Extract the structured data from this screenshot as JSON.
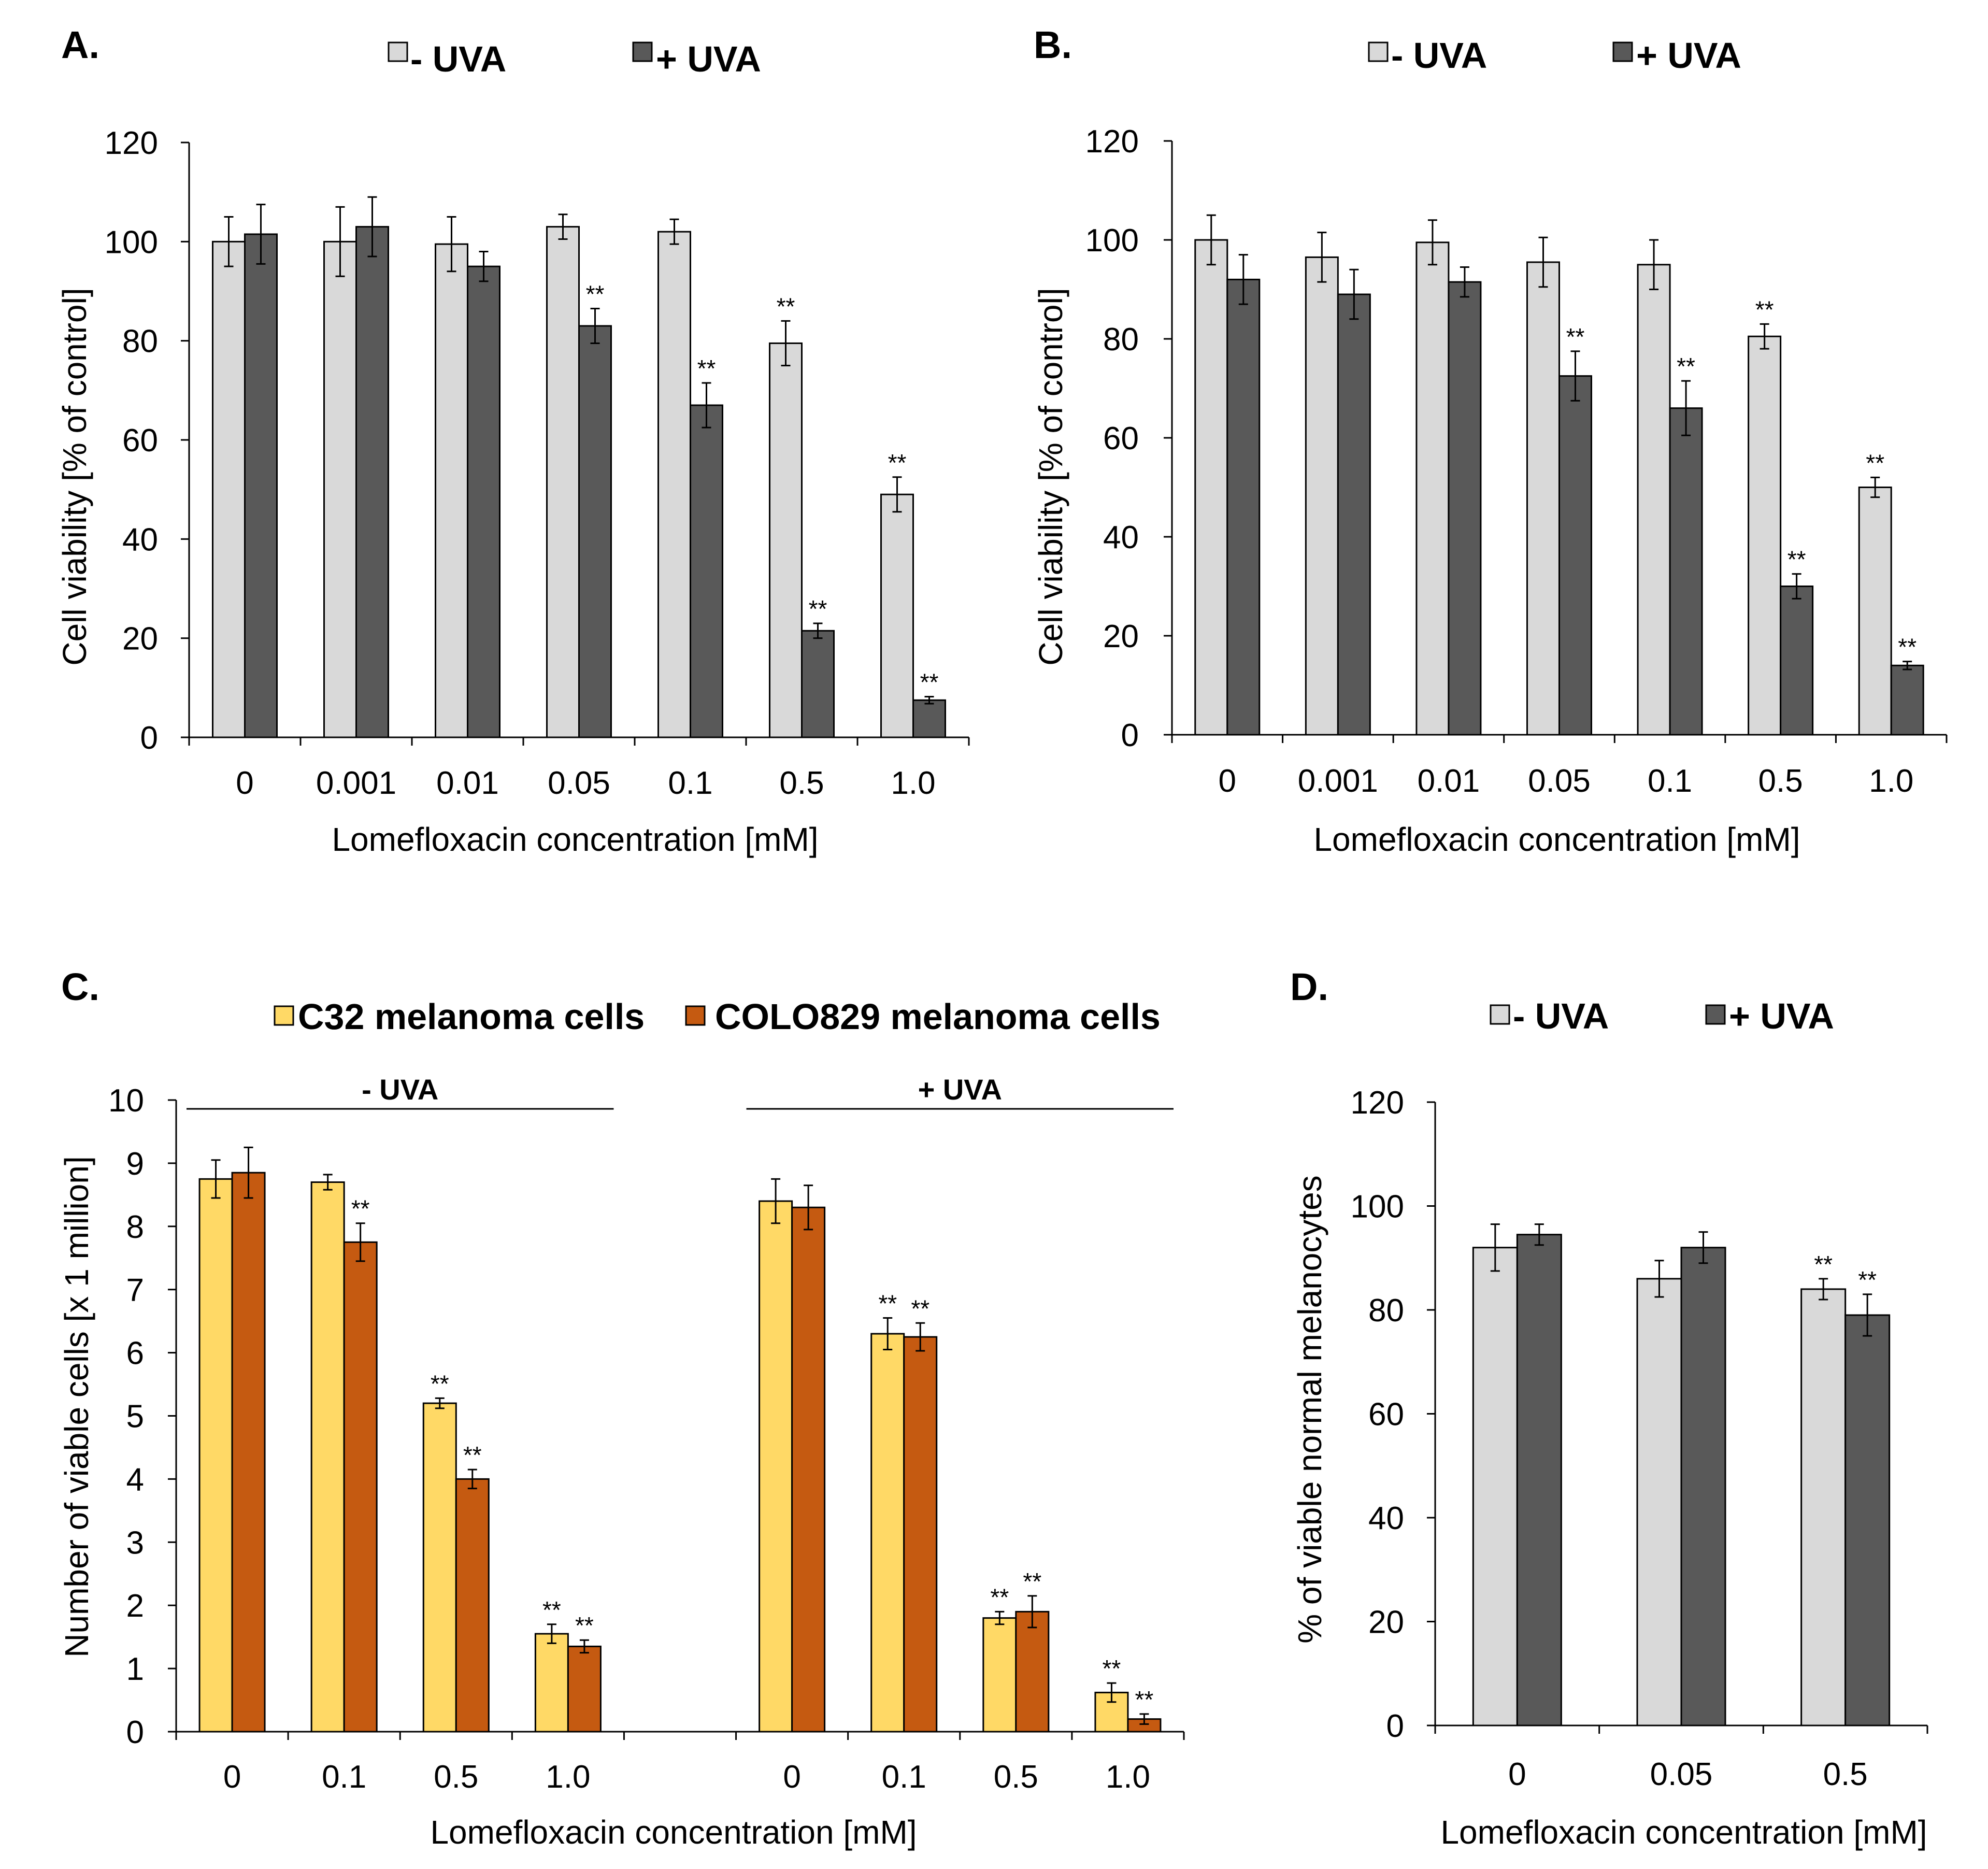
{
  "chart_data": [
    {
      "id": "A",
      "panel_label": "A.",
      "type": "bar",
      "title": "",
      "xlabel": "Lomefloxacin concentration [mM]",
      "ylabel": "Cell viability  [% of control]",
      "ylim": [
        0,
        120
      ],
      "yticks": [
        "0",
        "20",
        "40",
        "60",
        "80",
        "100",
        "120"
      ],
      "categories": [
        "0",
        "0.001",
        "0.01",
        "0.05",
        "0.1",
        "0.5",
        "1.0"
      ],
      "legend": [
        "- UVA",
        "+ UVA"
      ],
      "colors": [
        "#d9d9d9",
        "#595959"
      ],
      "series": [
        {
          "name": "- UVA",
          "values": [
            100,
            100,
            99.5,
            103,
            102,
            79.5,
            49
          ],
          "errors": [
            5,
            7,
            5.5,
            2.5,
            2.5,
            4.5,
            3.5
          ],
          "sig": [
            "",
            "",
            "",
            "",
            "",
            "**",
            "**"
          ]
        },
        {
          "name": "+ UVA",
          "values": [
            101.5,
            103,
            95,
            83,
            67,
            21.5,
            7.5
          ],
          "errors": [
            6,
            6,
            3,
            3.5,
            4.5,
            1.5,
            0.7
          ],
          "sig": [
            "",
            "",
            "",
            "**",
            "**",
            "**",
            "**"
          ]
        }
      ]
    },
    {
      "id": "B",
      "panel_label": "B.",
      "type": "bar",
      "title": "",
      "xlabel": "Lomefloxacin concentration [mM]",
      "ylabel": "Cell viability  [% of control]",
      "ylim": [
        0,
        120
      ],
      "yticks": [
        "0",
        "20",
        "40",
        "60",
        "80",
        "100",
        "120"
      ],
      "categories": [
        "0",
        "0.001",
        "0.01",
        "0.05",
        "0.1",
        "0.5",
        "1.0"
      ],
      "legend": [
        "- UVA",
        "+ UVA"
      ],
      "colors": [
        "#d9d9d9",
        "#595959"
      ],
      "series": [
        {
          "name": "- UVA",
          "values": [
            100,
            96.5,
            99.5,
            95.5,
            95,
            80.5,
            50
          ],
          "errors": [
            5,
            5,
            4.5,
            5,
            5,
            2.5,
            2
          ],
          "sig": [
            "",
            "",
            "",
            "",
            "",
            "**",
            "**"
          ]
        },
        {
          "name": "+ UVA",
          "values": [
            92,
            89,
            91.5,
            72.5,
            66,
            30,
            14
          ],
          "errors": [
            5,
            5,
            3,
            5,
            5.5,
            2.5,
            0.8
          ],
          "sig": [
            "",
            "",
            "",
            "**",
            "**",
            "**",
            "**"
          ]
        }
      ]
    },
    {
      "id": "C",
      "panel_label": "C.",
      "type": "bar",
      "title": "",
      "xlabel": "Lomefloxacin concentration [mM]",
      "ylabel": "Number of viable cells [x 1 million]",
      "ylim": [
        0,
        10
      ],
      "yticks": [
        "0",
        "1",
        "2",
        "3",
        "4",
        "5",
        "6",
        "7",
        "8",
        "9",
        "10"
      ],
      "categories": [
        "0",
        "0.1",
        "0.5",
        "1.0",
        "",
        "0",
        "0.1",
        "0.5",
        "1.0"
      ],
      "group_labels": [
        "- UVA",
        "+ UVA"
      ],
      "legend": [
        "C32 melanoma cells",
        "COLO829 melanoma cells"
      ],
      "colors": [
        "#ffd966",
        "#c55a11"
      ],
      "series": [
        {
          "name": "C32 melanoma cells",
          "values": [
            8.75,
            8.7,
            5.2,
            1.55,
            null,
            8.4,
            6.3,
            1.8,
            0.62
          ],
          "errors": [
            0.3,
            0.12,
            0.08,
            0.15,
            null,
            0.35,
            0.25,
            0.1,
            0.15
          ],
          "sig": [
            "",
            "",
            "**",
            "**",
            "",
            "",
            "**",
            "**",
            "**"
          ]
        },
        {
          "name": "COLO829 melanoma cells",
          "values": [
            8.85,
            7.75,
            4,
            1.35,
            null,
            8.3,
            6.25,
            1.9,
            0.2
          ],
          "errors": [
            0.4,
            0.3,
            0.15,
            0.1,
            null,
            0.35,
            0.22,
            0.25,
            0.08
          ],
          "sig": [
            "",
            "**",
            "**",
            "**",
            "",
            "",
            "**",
            "**",
            "**"
          ]
        }
      ]
    },
    {
      "id": "D",
      "panel_label": "D.",
      "type": "bar",
      "title": "",
      "xlabel": "Lomefloxacin concentration [mM]",
      "ylabel": "% of viable normal melanocytes",
      "ylim": [
        0,
        120
      ],
      "yticks": [
        "0",
        "20",
        "40",
        "60",
        "80",
        "100",
        "120"
      ],
      "categories": [
        "0",
        "0.05",
        "0.5"
      ],
      "legend": [
        "- UVA",
        "+ UVA"
      ],
      "colors": [
        "#d9d9d9",
        "#595959"
      ],
      "series": [
        {
          "name": "- UVA",
          "values": [
            92,
            86,
            84
          ],
          "errors": [
            4.5,
            3.5,
            2
          ],
          "sig": [
            "",
            "",
            "**"
          ]
        },
        {
          "name": "+ UVA",
          "values": [
            94.5,
            92,
            79
          ],
          "errors": [
            2,
            3,
            4
          ],
          "sig": [
            "",
            "",
            "**"
          ]
        }
      ]
    }
  ]
}
